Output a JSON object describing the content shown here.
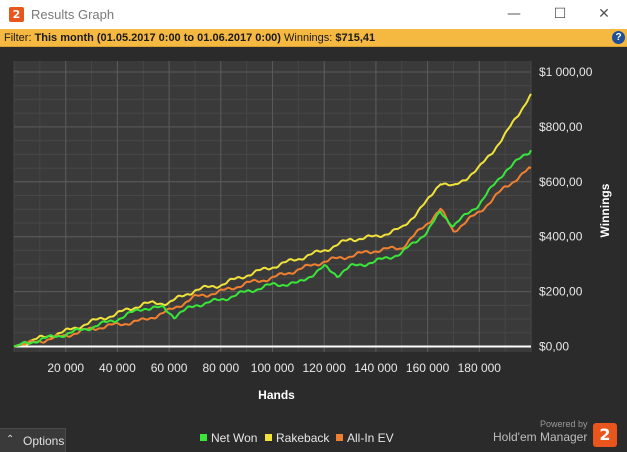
{
  "window": {
    "app_logo_char": "2",
    "title": "Results Graph",
    "minimize_glyph": "—",
    "maximize_glyph": "☐",
    "close_glyph": "✕"
  },
  "filter": {
    "prefix": "Filter:",
    "period": "This month (01.05.2017 0:00 to 01.06.2017 0:00)",
    "winnings_label": "Winnings:",
    "winnings_value": "$715,41",
    "help_icon_char": "?"
  },
  "chart_data": {
    "type": "line",
    "xlabel": "Hands",
    "ylabel": "Winnings",
    "xlim": [
      0,
      200000
    ],
    "ylim": [
      -20,
      1040
    ],
    "x_ticks": [
      20000,
      40000,
      60000,
      80000,
      100000,
      120000,
      140000,
      160000,
      180000
    ],
    "x_tick_labels": [
      "20 000",
      "40 000",
      "60 000",
      "80 000",
      "100 000",
      "120 000",
      "140 000",
      "160 000",
      "180 000"
    ],
    "y_ticks": [
      0,
      200,
      400,
      600,
      800,
      1000
    ],
    "y_tick_labels": [
      "$0,00",
      "$200,00",
      "$400,00",
      "$600,00",
      "$800,00",
      "$1 000,00"
    ],
    "x_minor_step": 10000,
    "y_minor_step": 50,
    "grid": true,
    "background": "#3a3a3a",
    "zero_line_color": "#ffffff",
    "series": [
      {
        "name": "Net Won",
        "color": "#39e639",
        "x": [
          0,
          10000,
          20000,
          30000,
          40000,
          50000,
          58000,
          62000,
          70000,
          80000,
          90000,
          100000,
          110000,
          120000,
          125000,
          130000,
          140000,
          150000,
          160000,
          165000,
          170000,
          180000,
          190000,
          200000
        ],
        "y": [
          0,
          25,
          45,
          70,
          100,
          140,
          140,
          110,
          150,
          170,
          200,
          225,
          230,
          290,
          260,
          290,
          310,
          340,
          420,
          490,
          440,
          520,
          640,
          715
        ]
      },
      {
        "name": "Rakeback",
        "color": "#f0e23a",
        "x": [
          0,
          10000,
          20000,
          30000,
          40000,
          50000,
          60000,
          70000,
          80000,
          90000,
          100000,
          110000,
          120000,
          130000,
          140000,
          150000,
          160000,
          165000,
          170000,
          180000,
          190000,
          200000
        ],
        "y": [
          0,
          30,
          55,
          90,
          120,
          155,
          160,
          205,
          225,
          260,
          290,
          320,
          350,
          390,
          400,
          430,
          530,
          600,
          580,
          650,
          770,
          920
        ]
      },
      {
        "name": "All-In EV",
        "color": "#f08030",
        "x": [
          0,
          10000,
          20000,
          30000,
          40000,
          50000,
          60000,
          70000,
          80000,
          90000,
          100000,
          110000,
          120000,
          130000,
          140000,
          150000,
          160000,
          165000,
          170000,
          180000,
          190000,
          200000
        ],
        "y": [
          0,
          20,
          40,
          65,
          80,
          95,
          130,
          180,
          200,
          230,
          250,
          280,
          310,
          330,
          350,
          360,
          450,
          500,
          420,
          490,
          580,
          650
        ]
      }
    ]
  },
  "bottom": {
    "options_chevron": "⌃",
    "options_label": "Options",
    "legend": [
      {
        "label": "Net Won",
        "color": "#39e639"
      },
      {
        "label": "Rakeback",
        "color": "#f0e23a"
      },
      {
        "label": "All-In EV",
        "color": "#f08030"
      }
    ],
    "powered_by": "Powered by",
    "brand_name": "Hold'em Manager",
    "brand_logo_char": "2"
  }
}
